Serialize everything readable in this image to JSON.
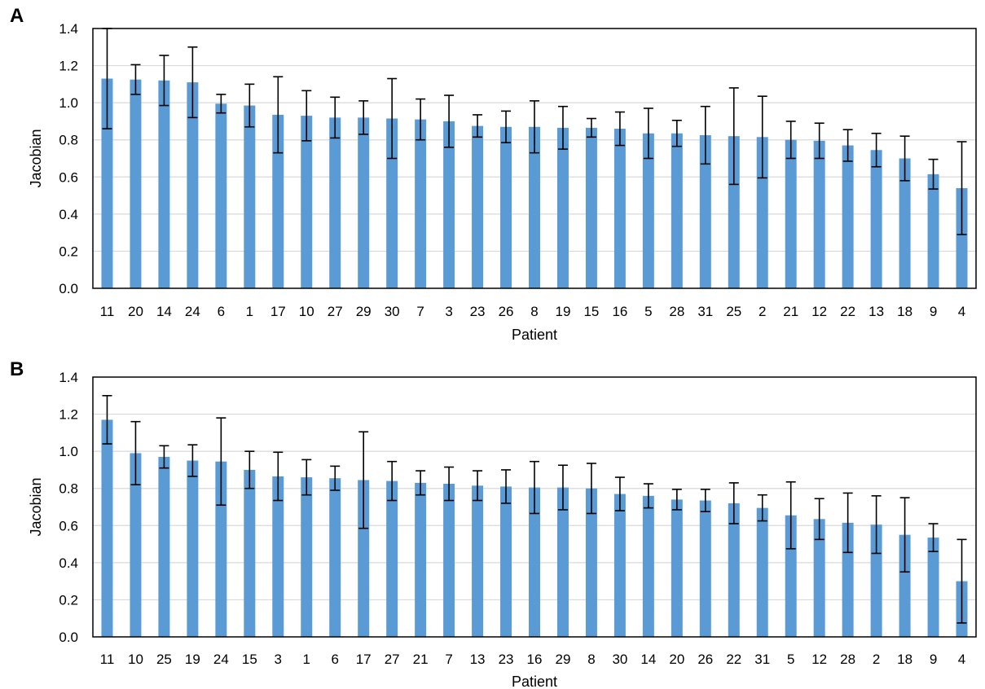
{
  "colors": {
    "bar": "#5b9bd5",
    "grid": "#d9d9d9",
    "frame": "#000000"
  },
  "chart_data": [
    {
      "panel": "A",
      "type": "bar",
      "xlabel": "Patient",
      "ylabel": "Jacobian",
      "ylim": [
        0,
        1.4
      ],
      "yticks": [
        "0.0",
        "0.2",
        "0.4",
        "0.6",
        "0.8",
        "1.0",
        "1.2",
        "1.4"
      ],
      "grid": true,
      "error_bars": true,
      "categories": [
        "11",
        "20",
        "14",
        "24",
        "6",
        "1",
        "17",
        "10",
        "27",
        "29",
        "30",
        "7",
        "3",
        "23",
        "26",
        "8",
        "19",
        "15",
        "16",
        "5",
        "28",
        "31",
        "25",
        "2",
        "21",
        "12",
        "22",
        "13",
        "18",
        "9",
        "4"
      ],
      "values": [
        1.13,
        1.125,
        1.12,
        1.11,
        0.995,
        0.985,
        0.935,
        0.93,
        0.92,
        0.92,
        0.915,
        0.91,
        0.9,
        0.875,
        0.87,
        0.87,
        0.865,
        0.865,
        0.86,
        0.835,
        0.835,
        0.825,
        0.82,
        0.815,
        0.8,
        0.795,
        0.77,
        0.745,
        0.7,
        0.615,
        0.54
      ],
      "errors": [
        0.27,
        0.08,
        0.135,
        0.19,
        0.05,
        0.115,
        0.205,
        0.135,
        0.11,
        0.09,
        0.215,
        0.11,
        0.14,
        0.06,
        0.085,
        0.14,
        0.115,
        0.05,
        0.09,
        0.135,
        0.07,
        0.155,
        0.26,
        0.22,
        0.1,
        0.095,
        0.085,
        0.09,
        0.12,
        0.08,
        0.25
      ]
    },
    {
      "panel": "B",
      "type": "bar",
      "xlabel": "Patient",
      "ylabel": "Jacobian",
      "ylim": [
        0,
        1.4
      ],
      "yticks": [
        "0.0",
        "0.2",
        "0.4",
        "0.6",
        "0.8",
        "1.0",
        "1.2",
        "1.4"
      ],
      "grid": true,
      "error_bars": true,
      "categories": [
        "11",
        "10",
        "25",
        "19",
        "24",
        "15",
        "3",
        "1",
        "6",
        "17",
        "27",
        "21",
        "7",
        "13",
        "23",
        "16",
        "29",
        "8",
        "30",
        "14",
        "20",
        "26",
        "22",
        "31",
        "5",
        "12",
        "28",
        "2",
        "18",
        "9",
        "4"
      ],
      "values": [
        1.17,
        0.99,
        0.97,
        0.95,
        0.945,
        0.9,
        0.865,
        0.86,
        0.855,
        0.845,
        0.84,
        0.83,
        0.825,
        0.815,
        0.81,
        0.805,
        0.805,
        0.8,
        0.77,
        0.76,
        0.74,
        0.735,
        0.72,
        0.695,
        0.655,
        0.635,
        0.615,
        0.605,
        0.55,
        0.535,
        0.3
      ],
      "errors": [
        0.13,
        0.17,
        0.06,
        0.085,
        0.235,
        0.1,
        0.13,
        0.095,
        0.065,
        0.26,
        0.105,
        0.065,
        0.09,
        0.08,
        0.09,
        0.14,
        0.12,
        0.135,
        0.09,
        0.065,
        0.055,
        0.06,
        0.11,
        0.07,
        0.18,
        0.11,
        0.16,
        0.155,
        0.2,
        0.075,
        0.225
      ]
    }
  ]
}
